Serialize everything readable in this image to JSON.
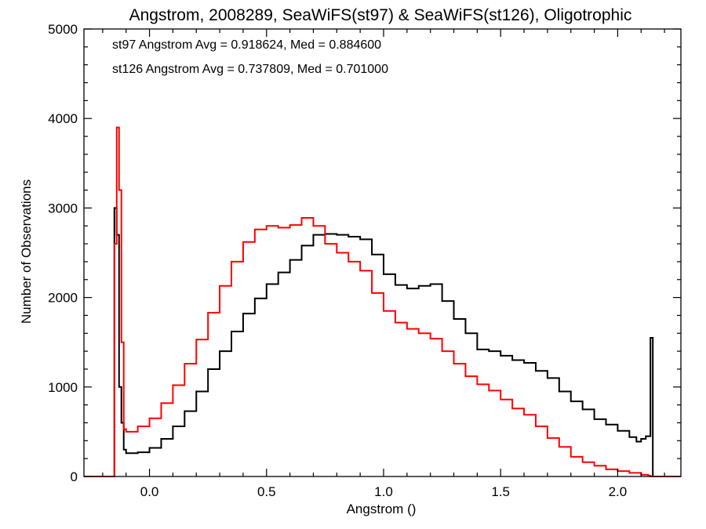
{
  "chart_data": {
    "type": "line",
    "title": "Angstrom, 2008289, SeaWiFS(st97) & SeaWiFS(st126), Oligotrophic",
    "xlabel": "Angstrom ()",
    "ylabel": "Number of Observations",
    "xlim": [
      -0.28,
      2.27
    ],
    "ylim": [
      0,
      5000
    ],
    "x_ticks": [
      0.0,
      0.5,
      1.0,
      1.5,
      2.0
    ],
    "x_tick_labels": [
      "0.0",
      "0.5",
      "1.0",
      "1.5",
      "2.0"
    ],
    "y_ticks": [
      0,
      1000,
      2000,
      3000,
      4000,
      5000
    ],
    "y_tick_labels": [
      "0",
      "1000",
      "2000",
      "3000",
      "4000",
      "5000"
    ],
    "grid": false,
    "annotations": [
      {
        "text": "st97 Angstrom Avg = 0.918624, Med = 0.884600",
        "color": "#000000"
      },
      {
        "text": "st126 Angstrom Avg = 0.737809, Med = 0.701000",
        "color": "#ff0000"
      }
    ],
    "series": [
      {
        "color": "#000000",
        "x": [
          -0.28,
          -0.16,
          -0.15,
          -0.14,
          -0.13,
          -0.12,
          -0.11,
          -0.1,
          -0.05,
          0.0,
          0.05,
          0.1,
          0.15,
          0.2,
          0.25,
          0.3,
          0.35,
          0.4,
          0.45,
          0.5,
          0.55,
          0.6,
          0.65,
          0.7,
          0.75,
          0.8,
          0.85,
          0.9,
          0.95,
          1.0,
          1.05,
          1.1,
          1.15,
          1.2,
          1.25,
          1.3,
          1.35,
          1.4,
          1.45,
          1.5,
          1.55,
          1.6,
          1.65,
          1.7,
          1.75,
          1.8,
          1.85,
          1.9,
          1.95,
          2.0,
          2.05,
          2.08,
          2.1,
          2.12,
          2.14,
          2.15,
          2.16,
          2.27
        ],
        "y": [
          0,
          0,
          3000,
          2700,
          1000,
          600,
          300,
          260,
          270,
          320,
          420,
          560,
          730,
          950,
          1200,
          1400,
          1620,
          1820,
          1990,
          2150,
          2280,
          2420,
          2580,
          2700,
          2710,
          2700,
          2680,
          2650,
          2480,
          2260,
          2140,
          2100,
          2130,
          2150,
          1960,
          1760,
          1600,
          1420,
          1400,
          1350,
          1300,
          1270,
          1180,
          1100,
          950,
          840,
          750,
          640,
          580,
          510,
          440,
          390,
          420,
          450,
          1550,
          0,
          0,
          0
        ]
      },
      {
        "color": "#ff0000",
        "x": [
          -0.28,
          -0.16,
          -0.15,
          -0.14,
          -0.13,
          -0.12,
          -0.11,
          -0.1,
          -0.05,
          0.0,
          0.05,
          0.1,
          0.15,
          0.2,
          0.25,
          0.3,
          0.35,
          0.4,
          0.45,
          0.5,
          0.55,
          0.6,
          0.65,
          0.7,
          0.75,
          0.8,
          0.85,
          0.9,
          0.95,
          1.0,
          1.05,
          1.1,
          1.15,
          1.2,
          1.25,
          1.3,
          1.35,
          1.4,
          1.45,
          1.5,
          1.55,
          1.6,
          1.65,
          1.7,
          1.75,
          1.8,
          1.85,
          1.9,
          1.95,
          2.0,
          2.05,
          2.1,
          2.13,
          2.14,
          2.15,
          2.27
        ],
        "y": [
          0,
          0,
          2600,
          3900,
          3200,
          1500,
          530,
          500,
          560,
          650,
          820,
          1020,
          1260,
          1530,
          1830,
          2130,
          2400,
          2620,
          2760,
          2800,
          2780,
          2810,
          2890,
          2800,
          2600,
          2500,
          2400,
          2300,
          2050,
          1850,
          1720,
          1650,
          1600,
          1540,
          1400,
          1260,
          1120,
          1030,
          960,
          860,
          760,
          690,
          560,
          430,
          330,
          220,
          160,
          120,
          80,
          60,
          40,
          20,
          10,
          0,
          0,
          0
        ]
      }
    ]
  }
}
